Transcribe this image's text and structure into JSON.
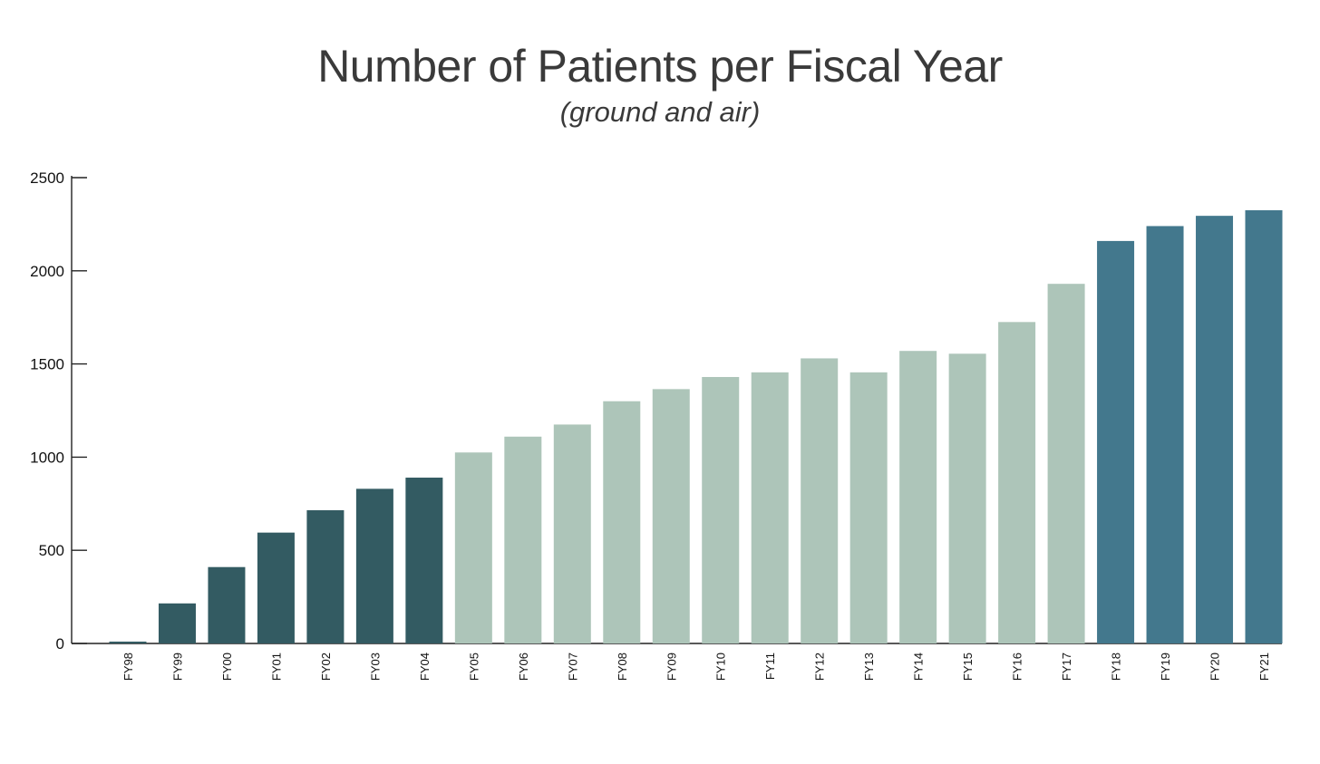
{
  "chart_data": {
    "type": "bar",
    "title": "Number of Patients per Fiscal Year",
    "subtitle": "(ground and air)",
    "xlabel": "",
    "ylabel": "",
    "ylim": [
      0,
      2500
    ],
    "yticks": [
      0,
      500,
      1000,
      1500,
      2000,
      2500
    ],
    "grid": false,
    "categories": [
      "FY98",
      "FY99",
      "FY00",
      "FY01",
      "FY02",
      "FY03",
      "FY04",
      "FY05",
      "FY06",
      "FY07",
      "FY08",
      "FY09",
      "FY10",
      "FY11",
      "FY12",
      "FY13",
      "FY14",
      "FY15",
      "FY16",
      "FY17",
      "FY18",
      "FY19",
      "FY20",
      "FY21"
    ],
    "values": [
      10,
      215,
      410,
      595,
      715,
      830,
      890,
      1025,
      1110,
      1175,
      1300,
      1365,
      1430,
      1455,
      1530,
      1455,
      1570,
      1555,
      1725,
      1930,
      2160,
      2240,
      2295,
      2325
    ],
    "bar_groups": [
      {
        "from": "FY98",
        "to": "FY04",
        "color": "#335b62"
      },
      {
        "from": "FY05",
        "to": "FY17",
        "color": "#adc5b9"
      },
      {
        "from": "FY18",
        "to": "FY21",
        "color": "#43788d"
      }
    ]
  }
}
